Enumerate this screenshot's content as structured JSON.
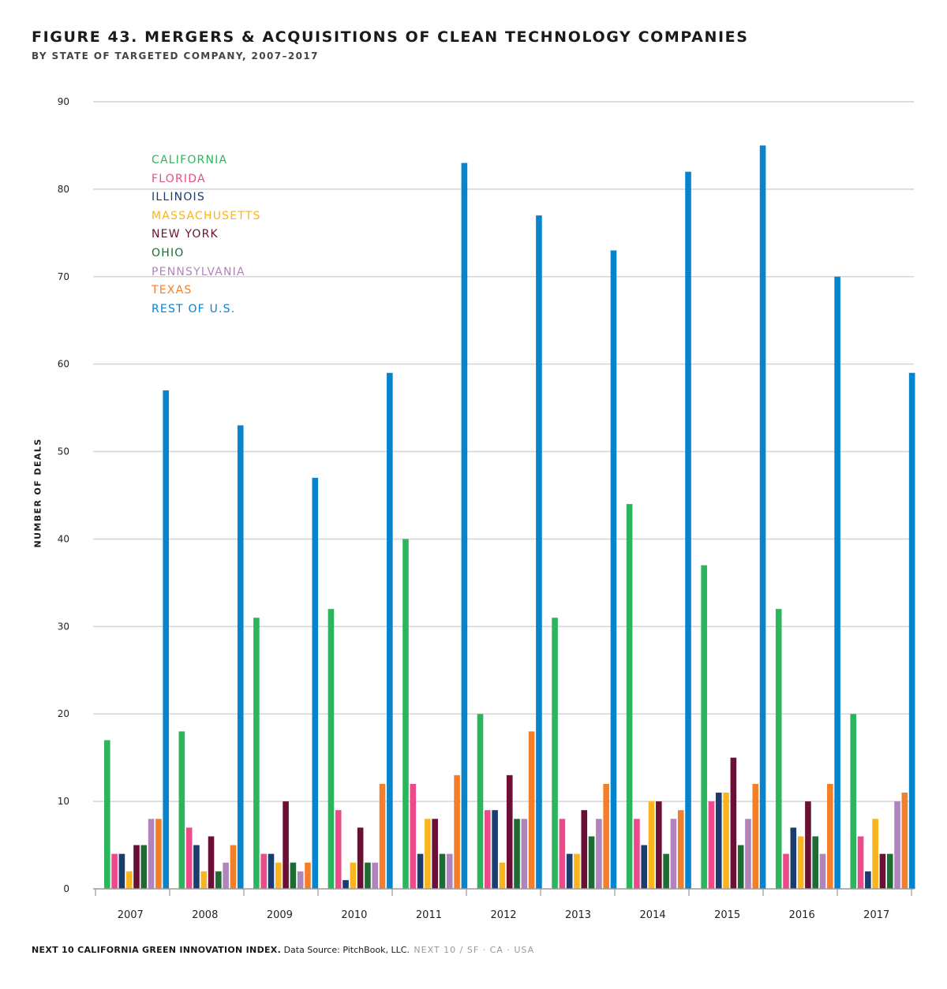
{
  "title": "FIGURE 43. MERGERS & ACQUISITIONS OF CLEAN TECHNOLOGY COMPANIES",
  "subtitle": "BY STATE OF TARGETED COMPANY, 2007–2017",
  "footer": {
    "source_bold": "NEXT 10 CALIFORNIA GREEN INNOVATION INDEX.",
    "source": "Data Source: PitchBook, LLC.",
    "brand": "NEXT 10 / SF · CA · USA"
  },
  "chart_data": {
    "type": "bar",
    "title": "FIGURE 43. MERGERS & ACQUISITIONS OF CLEAN TECHNOLOGY COMPANIES",
    "subtitle": "BY STATE OF TARGETED COMPANY, 2007–2017",
    "xlabel": "",
    "ylabel": "NUMBER OF DEALS",
    "ylim": [
      0,
      90
    ],
    "yticks": [
      0,
      10,
      20,
      30,
      40,
      50,
      60,
      70,
      80,
      90
    ],
    "grid": true,
    "legend_position": "top-left",
    "categories": [
      "2007",
      "2008",
      "2009",
      "2010",
      "2011",
      "2012",
      "2013",
      "2014",
      "2015",
      "2016",
      "2017"
    ],
    "series": [
      {
        "name": "CALIFORNIA",
        "color": "#2db55d",
        "values": [
          17,
          18,
          31,
          32,
          40,
          20,
          31,
          44,
          37,
          32,
          20
        ]
      },
      {
        "name": "FLORIDA",
        "color": "#ec4a8a",
        "values": [
          4,
          7,
          4,
          9,
          12,
          9,
          8,
          8,
          10,
          4,
          6
        ]
      },
      {
        "name": "ILLINOIS",
        "color": "#1b3c6e",
        "values": [
          4,
          5,
          4,
          1,
          4,
          9,
          4,
          5,
          11,
          7,
          2
        ]
      },
      {
        "name": "MASSACHUSETTS",
        "color": "#f9b41e",
        "values": [
          2,
          2,
          3,
          3,
          8,
          3,
          4,
          10,
          11,
          6,
          8
        ]
      },
      {
        "name": "NEW YORK",
        "color": "#6b1034",
        "values": [
          5,
          6,
          10,
          7,
          8,
          13,
          9,
          10,
          15,
          10,
          4
        ]
      },
      {
        "name": "OHIO",
        "color": "#1f6b34",
        "values": [
          5,
          2,
          3,
          3,
          4,
          8,
          6,
          4,
          5,
          6,
          4
        ]
      },
      {
        "name": "PENNSYLVANIA",
        "color": "#b084bd",
        "values": [
          8,
          3,
          2,
          3,
          4,
          8,
          8,
          8,
          8,
          4,
          10
        ]
      },
      {
        "name": "TEXAS",
        "color": "#f37f2a",
        "values": [
          8,
          5,
          3,
          12,
          13,
          18,
          12,
          9,
          12,
          12,
          11
        ]
      },
      {
        "name": "REST OF U.S.",
        "color": "#0884cd",
        "values": [
          57,
          53,
          47,
          59,
          83,
          77,
          73,
          82,
          85,
          70,
          59
        ]
      }
    ]
  }
}
